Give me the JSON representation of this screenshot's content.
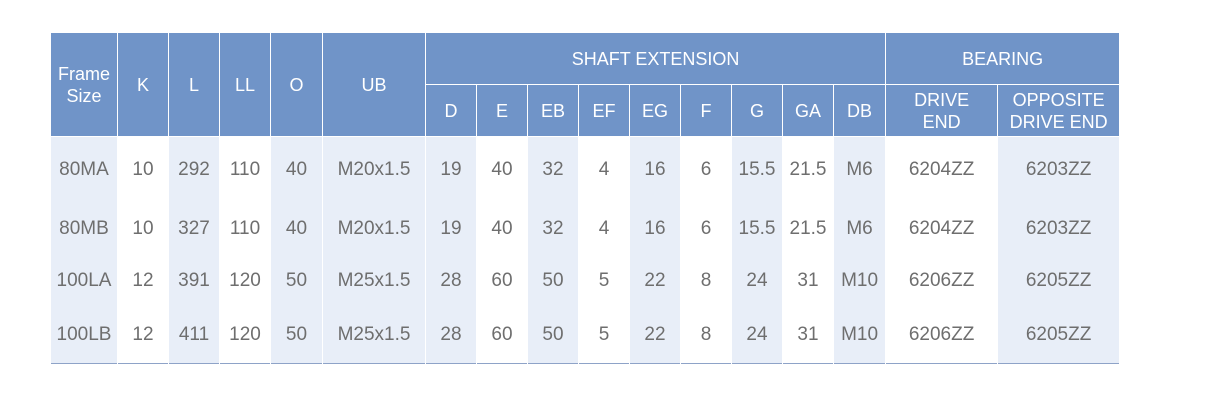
{
  "header": {
    "frame_size": "Frame\nSize",
    "k": "K",
    "l": "L",
    "ll": "LL",
    "o": "O",
    "ub": "UB",
    "shaft_extension": "SHAFT EXTENSION",
    "bearing": "BEARING",
    "shaft_cols": [
      "D",
      "E",
      "EB",
      "EF",
      "EG",
      "F",
      "G",
      "GA",
      "DB"
    ],
    "drive_end": "DRIVE\nEND",
    "opposite_drive_end": "OPPOSITE\nDRIVE END"
  },
  "rows": [
    [
      "80MA",
      "10",
      "292",
      "110",
      "40",
      "M20x1.5",
      "19",
      "40",
      "32",
      "4",
      "16",
      "6",
      "15.5",
      "21.5",
      "M6",
      "6204ZZ",
      "6203ZZ"
    ],
    [
      "80MB",
      "10",
      "327",
      "110",
      "40",
      "M20x1.5",
      "19",
      "40",
      "32",
      "4",
      "16",
      "6",
      "15.5",
      "21.5",
      "M6",
      "6204ZZ",
      "6203ZZ"
    ],
    [
      "100LA",
      "12",
      "391",
      "120",
      "50",
      "M25x1.5",
      "28",
      "60",
      "50",
      "5",
      "22",
      "8",
      "24",
      "31",
      "M10",
      "6206ZZ",
      "6205ZZ"
    ],
    [
      "100LB",
      "12",
      "411",
      "120",
      "50",
      "M25x1.5",
      "28",
      "60",
      "50",
      "5",
      "22",
      "8",
      "24",
      "31",
      "M10",
      "6206ZZ",
      "6205ZZ"
    ]
  ],
  "colors": {
    "header_bg": "#7094c8",
    "shade_bg": "#e8eef8",
    "text": "#6e6e6e"
  }
}
